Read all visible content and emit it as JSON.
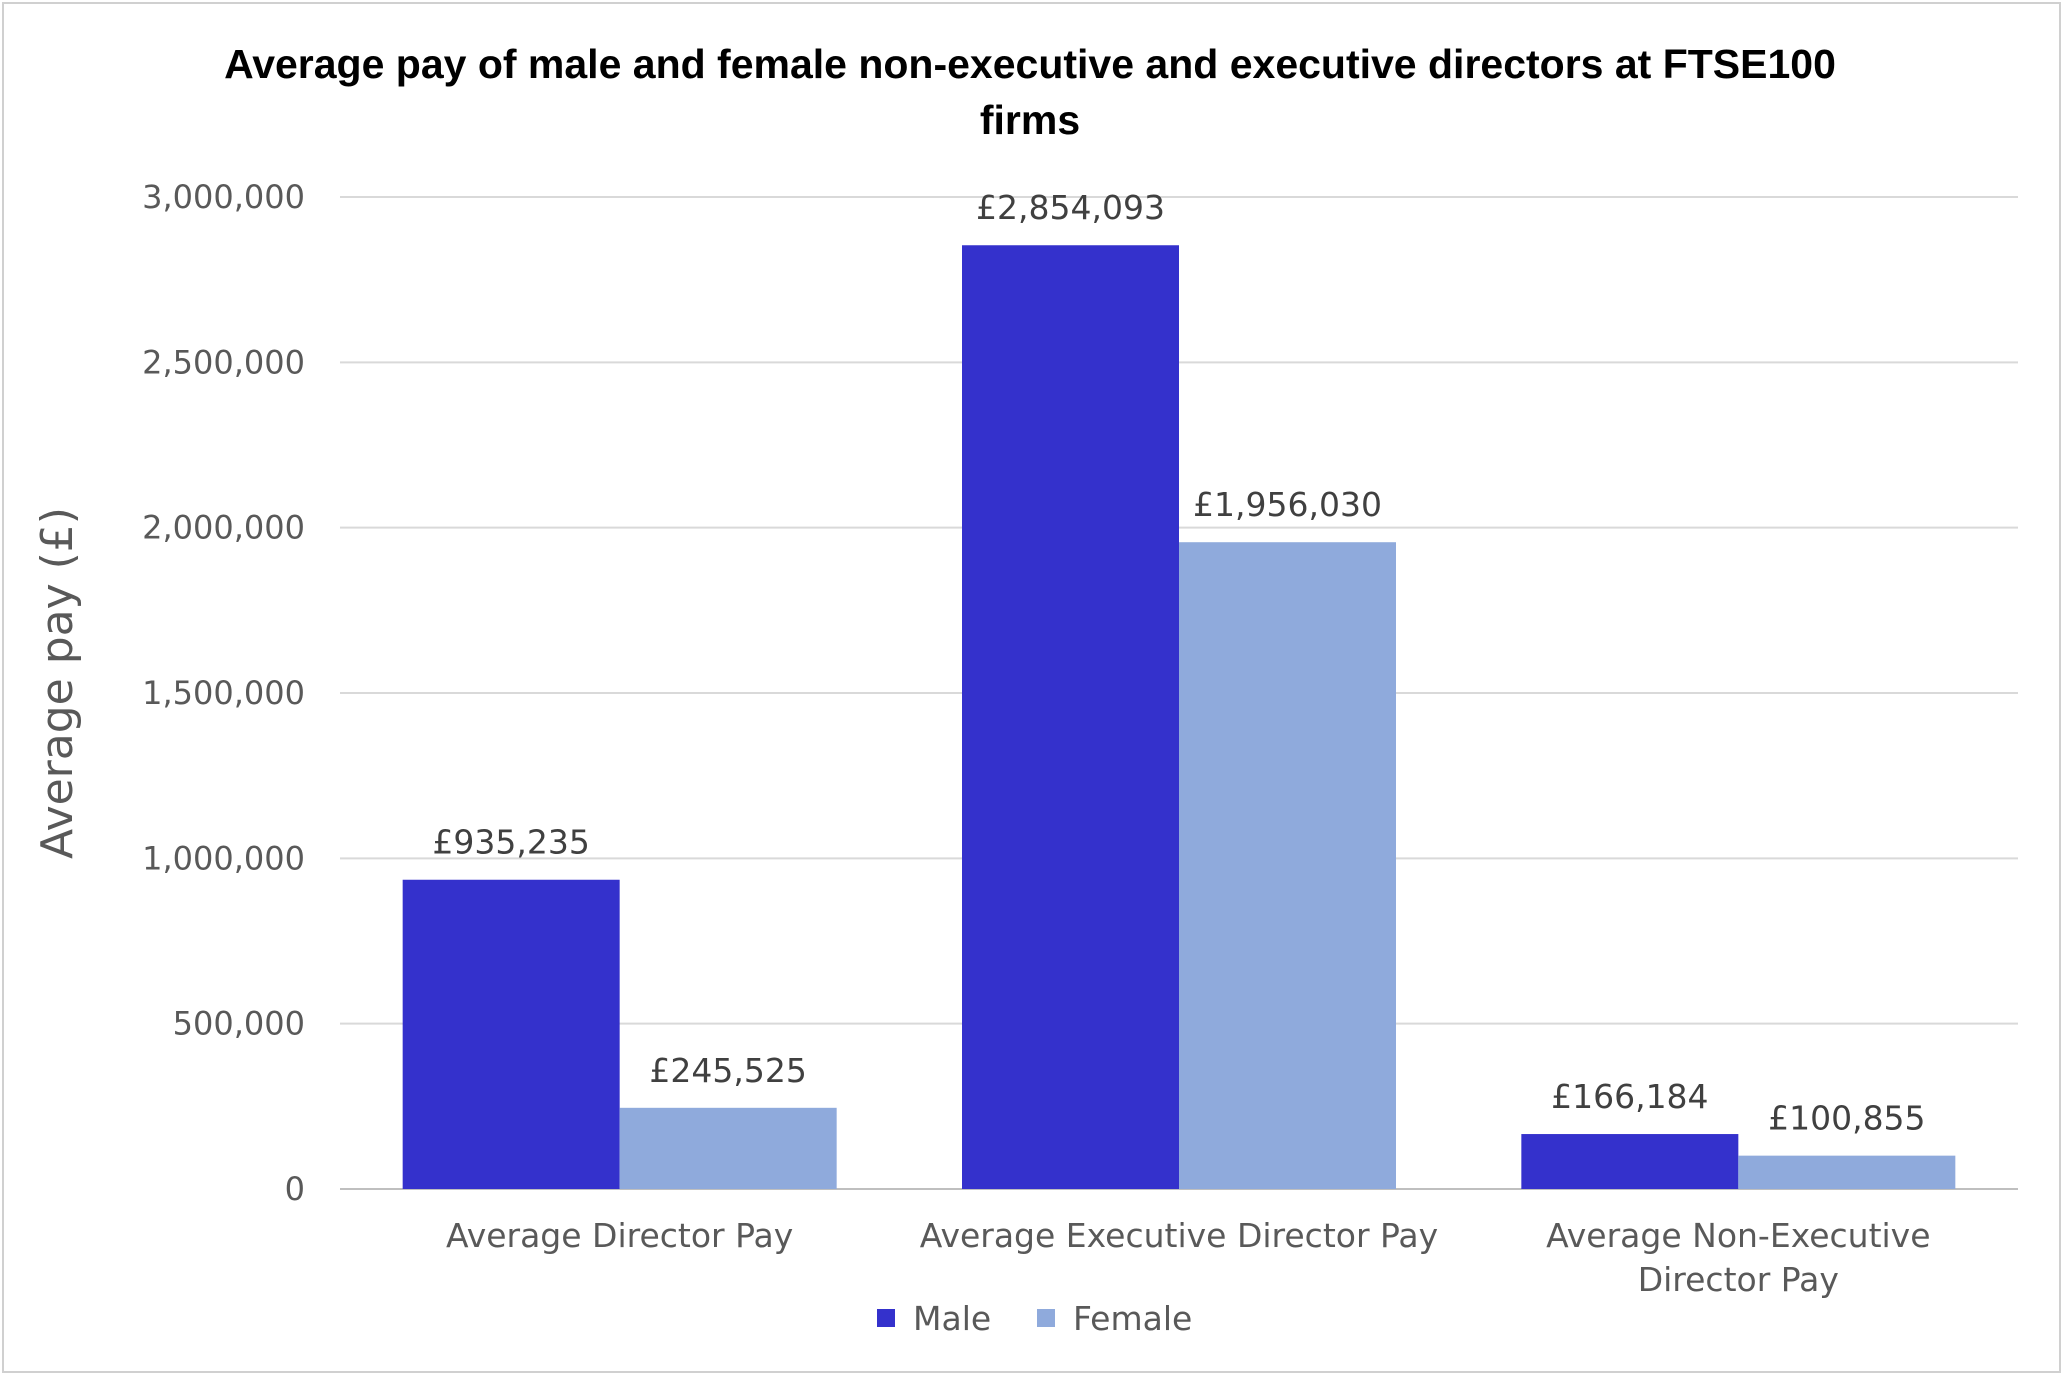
{
  "chart_data": {
    "type": "bar",
    "title": "Average pay of male and female non-executive and executive directors at FTSE100 firms",
    "xlabel": "",
    "ylabel": "Average pay (£)",
    "ylim": [
      0,
      3000000
    ],
    "yticks": [
      0,
      500000,
      1000000,
      1500000,
      2000000,
      2500000,
      3000000
    ],
    "ytick_labels": [
      "0",
      "500,000",
      "1,000,000",
      "1,500,000",
      "2,000,000",
      "2,500,000",
      "3,000,000"
    ],
    "categories": [
      "Average Director Pay",
      "Average Executive Director Pay",
      "Average Non-Executive Director Pay"
    ],
    "category_label_lines": [
      [
        "Average Director Pay"
      ],
      [
        "Average Executive Director Pay"
      ],
      [
        "Average Non-Executive",
        "Director Pay"
      ]
    ],
    "series": [
      {
        "name": "Male",
        "color": "#3431cc",
        "values": [
          935235,
          2854093,
          166184
        ],
        "labels": [
          "£935,235",
          "£2,854,093",
          "£166,184"
        ]
      },
      {
        "name": "Female",
        "color": "#8faadc",
        "values": [
          245525,
          1956030,
          100855
        ],
        "labels": [
          "£245,525",
          "£1,956,030",
          "£100,855"
        ]
      }
    ],
    "grid": true,
    "legend_position": "bottom"
  }
}
